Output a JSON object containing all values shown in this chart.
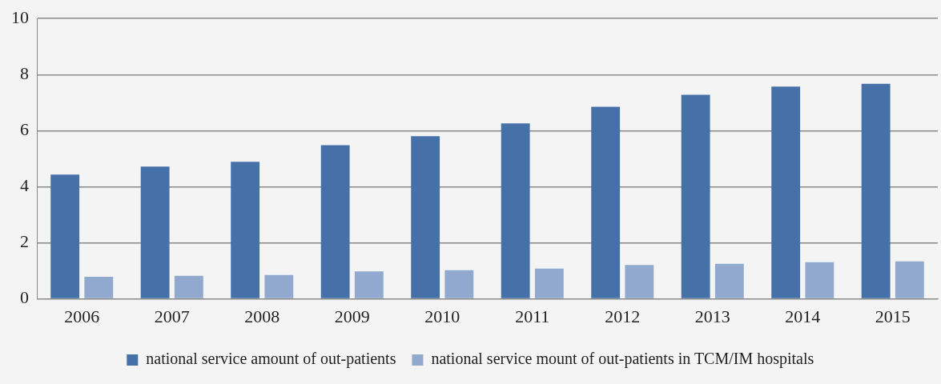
{
  "chart_data": {
    "type": "bar",
    "categories": [
      "2006",
      "2007",
      "2008",
      "2009",
      "2010",
      "2011",
      "2012",
      "2013",
      "2014",
      "2015"
    ],
    "series": [
      {
        "name": "national service amount of out-patients",
        "color": "#4571a8",
        "values": [
          4.43,
          4.72,
          4.89,
          5.48,
          5.8,
          6.26,
          6.85,
          7.28,
          7.57,
          7.67
        ]
      },
      {
        "name": "national service mount of out-patients in TCM/IM hospitals",
        "color": "#91a9cf",
        "values": [
          0.79,
          0.82,
          0.85,
          0.98,
          1.02,
          1.08,
          1.21,
          1.25,
          1.31,
          1.34
        ]
      }
    ],
    "ylim": [
      0,
      10
    ],
    "yticks": [
      0,
      2,
      4,
      6,
      8,
      10
    ],
    "grid": "y",
    "legend": "bottom"
  }
}
